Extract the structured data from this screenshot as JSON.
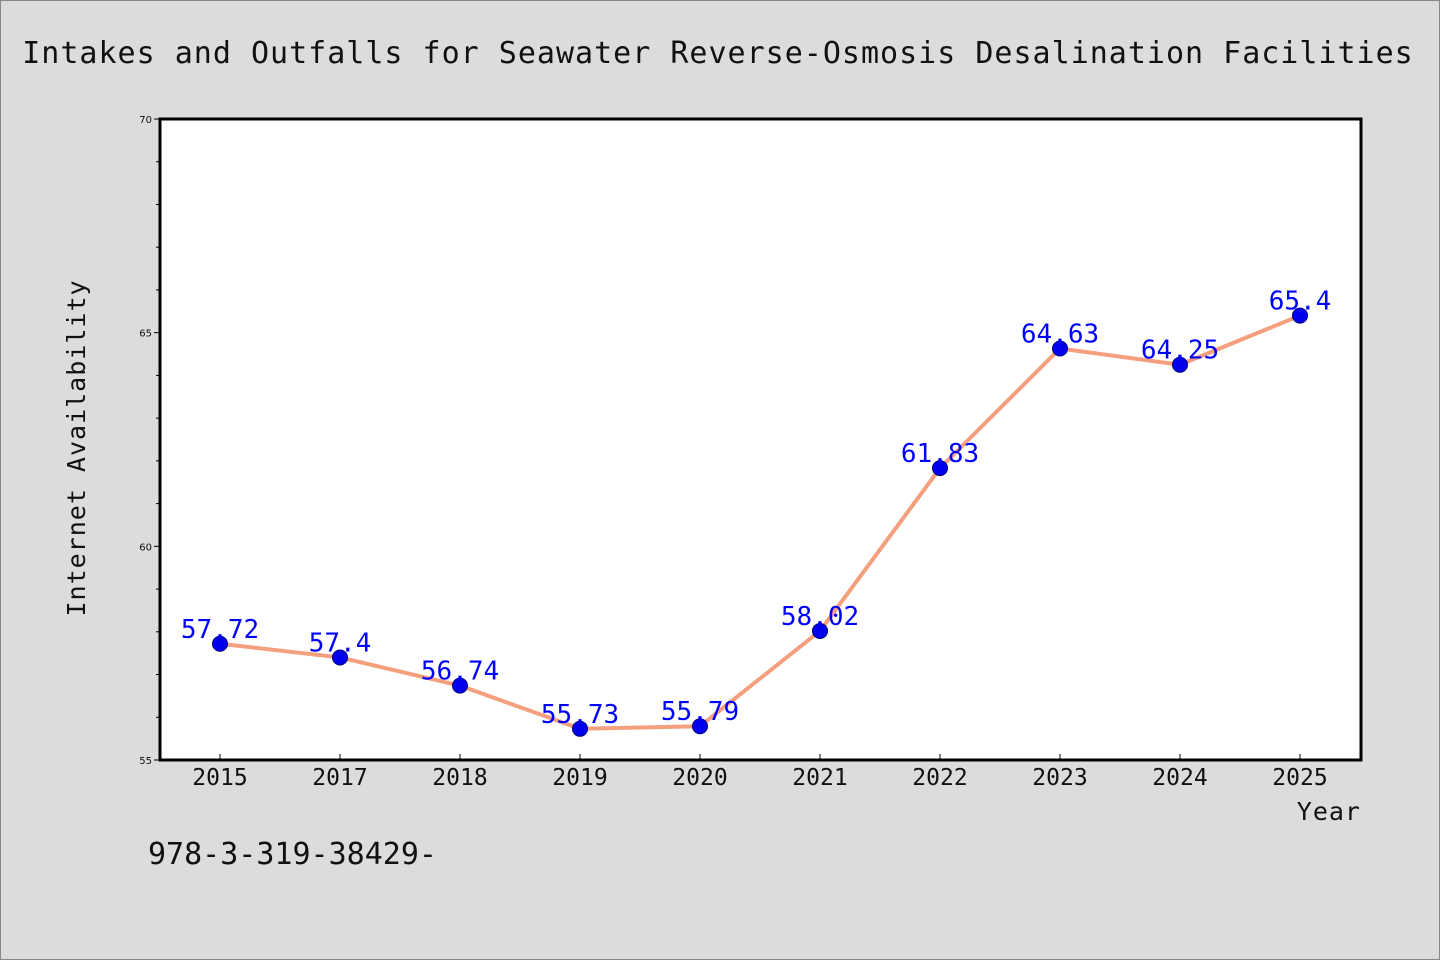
{
  "chart_data": {
    "type": "line",
    "title": "Intakes and Outfalls for Seawater Reverse-Osmosis Desalination Facilities",
    "xlabel": "Year",
    "ylabel": "Internet Availability",
    "categories": [
      "2015",
      "2017",
      "2018",
      "2019",
      "2020",
      "2021",
      "2022",
      "2023",
      "2024",
      "2025"
    ],
    "series": [
      {
        "values": [
          57.72,
          57.4,
          56.74,
          55.73,
          55.79,
          58.02,
          61.83,
          64.63,
          64.25,
          65.4
        ],
        "point_labels": [
          "57.72",
          "57.4",
          "56.74",
          "55.73",
          "55.79",
          "58.02",
          "61.83",
          "64.63",
          "64.25",
          "65.4"
        ]
      }
    ],
    "ylim": [
      55,
      70
    ],
    "yticks": [
      "55",
      "60",
      "65",
      "70"
    ],
    "grid": false,
    "colors": {
      "line": "#f4a07e",
      "marker": "#0000ee",
      "data_label": "#0000ff",
      "background": "#dcdcdc",
      "plot_area": "#ffffff"
    }
  },
  "footer_text": "978-3-319-38429-"
}
